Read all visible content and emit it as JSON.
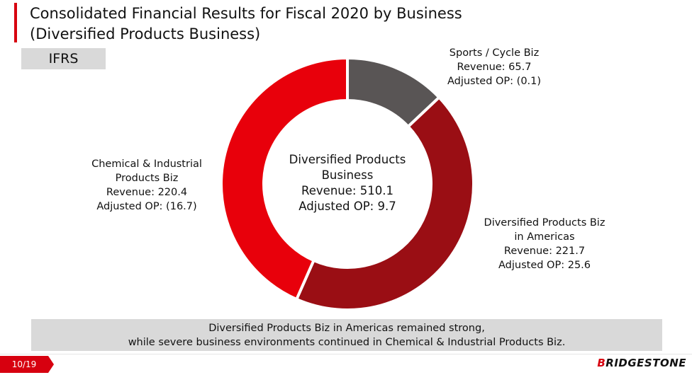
{
  "header": {
    "title_line1": "Consolidated Financial Results for Fiscal 2020 by Business",
    "title_line2": "(Diversified Products Business)",
    "badge": "IFRS"
  },
  "chart_data": {
    "type": "pie",
    "donut": true,
    "start_angle_deg": 0,
    "slices": [
      {
        "name": "Sports / Cycle Biz",
        "value": 65.7,
        "color": "#595555"
      },
      {
        "name": "Diversified Products Biz in Americas",
        "value": 221.7,
        "color": "#9a0e14"
      },
      {
        "name": "Chemical & Industrial Products Biz",
        "value": 220.4,
        "color": "#e8000b"
      }
    ],
    "labels": {
      "sports": [
        "Sports / Cycle Biz",
        "Revenue: 65.7",
        "Adjusted OP: (0.1)"
      ],
      "americas": [
        "Diversified Products Biz",
        "in Americas",
        "Revenue: 221.7",
        "Adjusted OP: 25.6"
      ],
      "chemical": [
        "Chemical & Industrial",
        "Products Biz",
        "Revenue: 220.4",
        "Adjusted OP: (16.7)"
      ]
    },
    "center": [
      "Diversified Products",
      "Business",
      "Revenue: 510.1",
      "Adjusted OP: 9.7"
    ]
  },
  "summary": {
    "line1": "Diversified Products Biz in Americas remained strong,",
    "line2": "while severe business environments continued in Chemical & Industrial Products Biz."
  },
  "footer": {
    "page": "10/19",
    "brand_mark": "B",
    "brand_rest": "RIDGESTONE"
  }
}
